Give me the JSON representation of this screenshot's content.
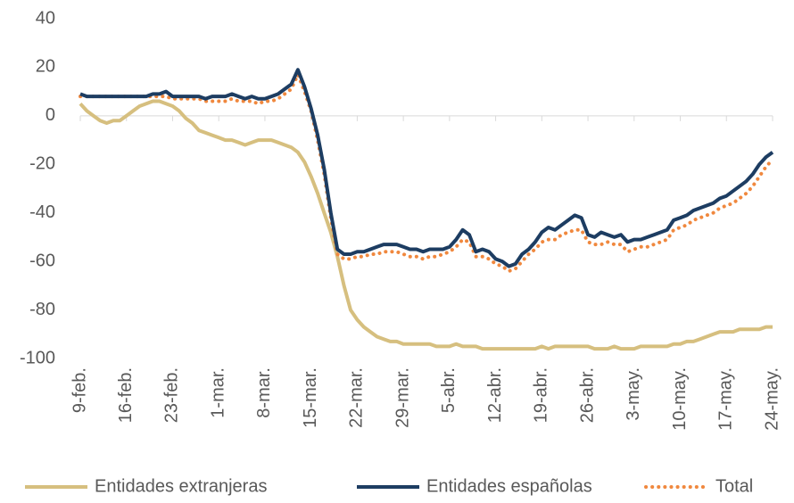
{
  "chart_data": {
    "type": "line",
    "categories": [
      "9-feb.",
      null,
      null,
      null,
      null,
      null,
      null,
      "16-feb.",
      null,
      null,
      null,
      null,
      null,
      null,
      "23-feb.",
      null,
      null,
      null,
      null,
      null,
      null,
      "1-mar.",
      null,
      null,
      null,
      null,
      null,
      null,
      "8-mar.",
      null,
      null,
      null,
      null,
      null,
      null,
      "15-mar.",
      null,
      null,
      null,
      null,
      null,
      null,
      "22-mar.",
      null,
      null,
      null,
      null,
      null,
      null,
      "29-mar.",
      null,
      null,
      null,
      null,
      null,
      null,
      "5-abr.",
      null,
      null,
      null,
      null,
      null,
      null,
      "12-abr.",
      null,
      null,
      null,
      null,
      null,
      null,
      "19-abr.",
      null,
      null,
      null,
      null,
      null,
      null,
      "26-abr.",
      null,
      null,
      null,
      null,
      null,
      null,
      "3-may.",
      null,
      null,
      null,
      null,
      null,
      null,
      "10-may.",
      null,
      null,
      null,
      null,
      null,
      null,
      "17-may.",
      null,
      null,
      null,
      null,
      null,
      null,
      "24-may."
    ],
    "series": [
      {
        "name": "Entidades extranjeras",
        "color": "#d6bf7f",
        "line_style": "solid",
        "values": [
          5,
          2,
          0,
          -2,
          -3,
          -2,
          -2,
          0,
          2,
          4,
          5,
          6,
          6,
          5,
          4,
          2,
          -1,
          -3,
          -6,
          -7,
          -8,
          -9,
          -10,
          -10,
          -11,
          -12,
          -11,
          -10,
          -10,
          -10,
          -11,
          -12,
          -13,
          -15,
          -19,
          -25,
          -32,
          -40,
          -48,
          -58,
          -70,
          -80,
          -84,
          -87,
          -89,
          -91,
          -92,
          -93,
          -93,
          -94,
          -94,
          -94,
          -94,
          -94,
          -95,
          -95,
          -95,
          -94,
          -95,
          -95,
          -95,
          -96,
          -96,
          -96,
          -96,
          -96,
          -96,
          -96,
          -96,
          -96,
          -95,
          -96,
          -95,
          -95,
          -95,
          -95,
          -95,
          -95,
          -96,
          -96,
          -96,
          -95,
          -96,
          -96,
          -96,
          -95,
          -95,
          -95,
          -95,
          -95,
          -94,
          -94,
          -93,
          -93,
          -92,
          -91,
          -90,
          -89,
          -89,
          -89,
          -88,
          -88,
          -88,
          -88,
          -87,
          -87
        ]
      },
      {
        "name": "Entidades españolas",
        "color": "#1d3d62",
        "line_style": "solid",
        "values": [
          9,
          8,
          8,
          8,
          8,
          8,
          8,
          8,
          8,
          8,
          8,
          9,
          9,
          10,
          8,
          8,
          8,
          8,
          8,
          7,
          8,
          8,
          8,
          9,
          8,
          7,
          8,
          7,
          7,
          8,
          9,
          11,
          13,
          19,
          12,
          3,
          -8,
          -22,
          -40,
          -55,
          -57,
          -57,
          -56,
          -56,
          -55,
          -54,
          -53,
          -53,
          -53,
          -54,
          -55,
          -55,
          -56,
          -55,
          -55,
          -55,
          -54,
          -51,
          -47,
          -49,
          -56,
          -55,
          -56,
          -59,
          -60,
          -62,
          -61,
          -57,
          -55,
          -52,
          -48,
          -46,
          -47,
          -45,
          -43,
          -41,
          -42,
          -49,
          -50,
          -48,
          -49,
          -50,
          -49,
          -52,
          -51,
          -51,
          -50,
          -49,
          -48,
          -47,
          -43,
          -42,
          -41,
          -39,
          -38,
          -37,
          -36,
          -34,
          -33,
          -31,
          -29,
          -27,
          -24,
          -20,
          -17,
          -15
        ]
      },
      {
        "name": "Total",
        "color": "#f0883e",
        "line_style": "dotted",
        "values": [
          8,
          8,
          8,
          8,
          8,
          8,
          8,
          8,
          8,
          8,
          8,
          8,
          8,
          8,
          7,
          7,
          7,
          7,
          7,
          6,
          6,
          6,
          6,
          7,
          6,
          6,
          6,
          5,
          6,
          6,
          7,
          9,
          11,
          17,
          10,
          2,
          -10,
          -24,
          -42,
          -57,
          -59,
          -59,
          -58,
          -58,
          -57,
          -57,
          -56,
          -56,
          -56,
          -57,
          -58,
          -58,
          -59,
          -58,
          -58,
          -57,
          -56,
          -54,
          -51,
          -52,
          -58,
          -58,
          -59,
          -61,
          -62,
          -64,
          -63,
          -60,
          -57,
          -55,
          -52,
          -51,
          -51,
          -49,
          -48,
          -47,
          -47,
          -52,
          -53,
          -53,
          -52,
          -53,
          -53,
          -56,
          -55,
          -54,
          -54,
          -53,
          -52,
          -51,
          -47,
          -46,
          -45,
          -43,
          -42,
          -41,
          -40,
          -38,
          -37,
          -36,
          -34,
          -32,
          -29,
          -25,
          -21,
          -18
        ]
      }
    ],
    "ylim": [
      -100,
      40
    ],
    "yticks": [
      -100,
      -80,
      -60,
      -40,
      -20,
      0,
      20,
      40
    ],
    "grid": false,
    "legend": "bottom"
  }
}
